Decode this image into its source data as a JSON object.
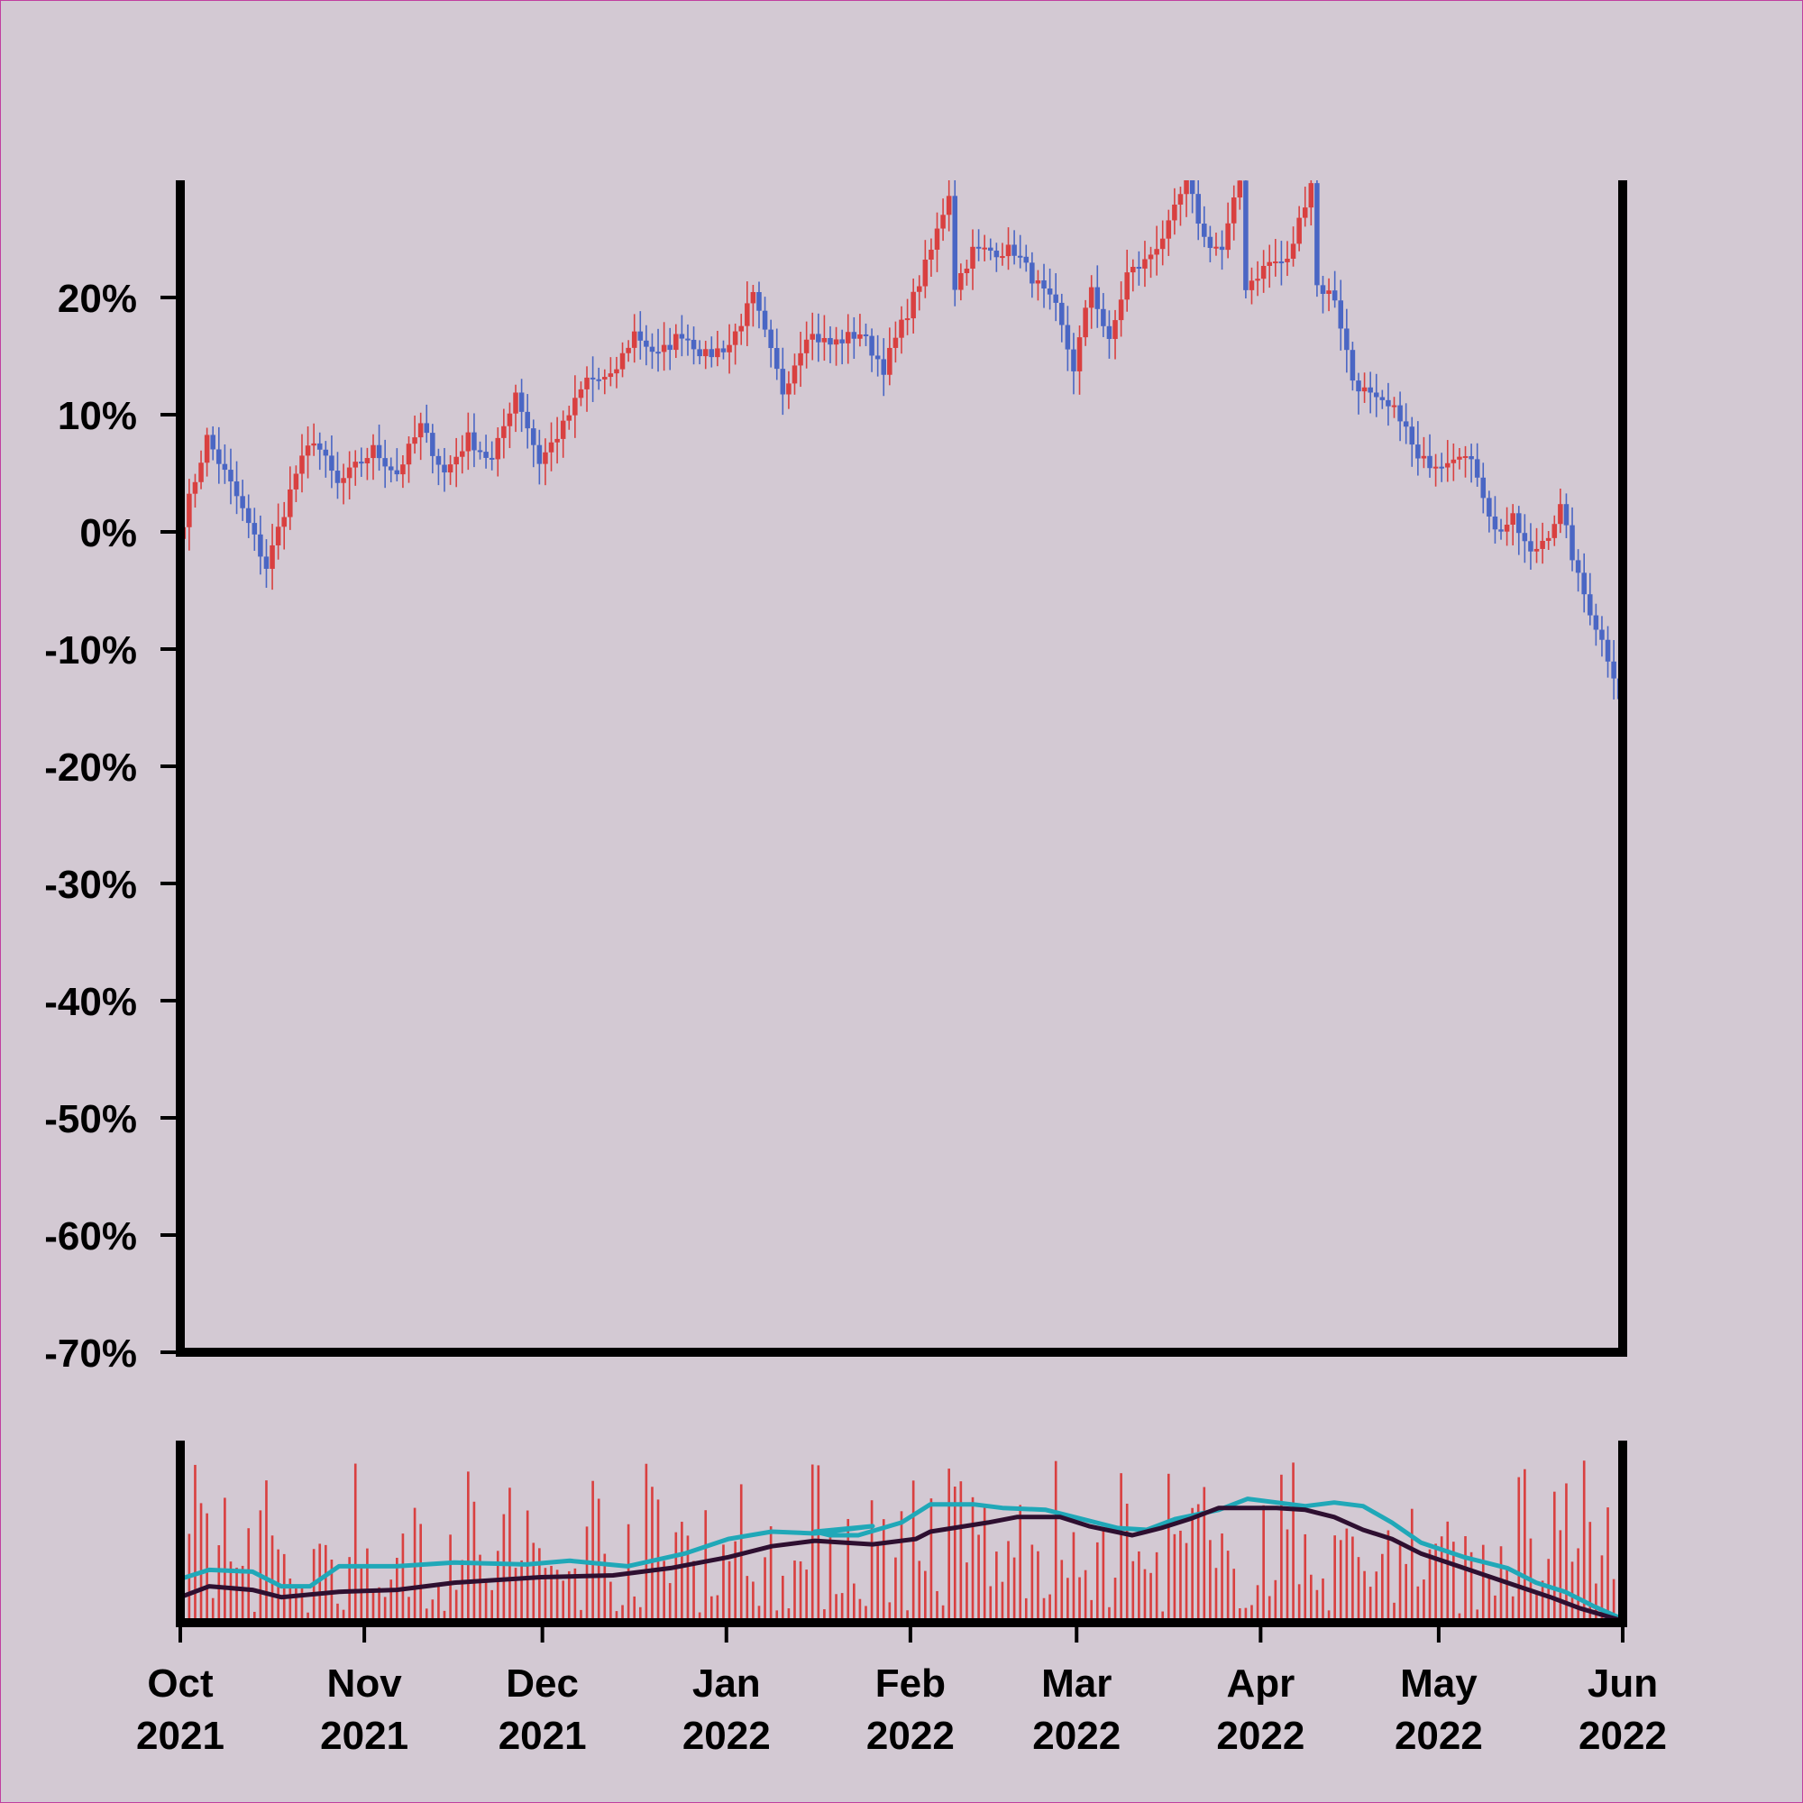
{
  "chart_data": [
    {
      "type": "candlestick",
      "title": "",
      "xlabel": "",
      "ylabel": "",
      "ylim": [
        -70,
        30
      ],
      "y_unit": "%",
      "y_ticks": [
        20,
        10,
        0,
        -10,
        -20,
        -30,
        -40,
        -50,
        -60,
        -70
      ],
      "y_tick_labels": [
        "20%",
        "10%",
        "0%",
        "-10%",
        "-20%",
        "-30%",
        "-40%",
        "-50%",
        "-60%",
        "-70%"
      ],
      "x_range": [
        "2021-10-01",
        "2022-06-01"
      ],
      "x_ticks": [
        "2021-10-01",
        "2021-11-01",
        "2021-12-01",
        "2022-01-01",
        "2022-02-01",
        "2022-03-01",
        "2022-04-01",
        "2022-05-01",
        "2022-06-01"
      ],
      "x_tick_labels": [
        {
          "month": "Oct",
          "year": "2021"
        },
        {
          "month": "Nov",
          "year": "2021"
        },
        {
          "month": "Dec",
          "year": "2021"
        },
        {
          "month": "Jan",
          "year": "2022"
        },
        {
          "month": "Feb",
          "year": "2022"
        },
        {
          "month": "Mar",
          "year": "2022"
        },
        {
          "month": "Apr",
          "year": "2022"
        },
        {
          "month": "May",
          "year": "2022"
        },
        {
          "month": "Jun",
          "year": "2022"
        }
      ],
      "up_color": "#d94040",
      "down_color": "#4a66c4",
      "close_path": [
        [
          "2021-10-01",
          1
        ],
        [
          "2021-10-05",
          8
        ],
        [
          "2021-10-10",
          3
        ],
        [
          "2021-10-15",
          -3
        ],
        [
          "2021-10-20",
          5
        ],
        [
          "2021-10-23",
          8
        ],
        [
          "2021-10-27",
          4
        ],
        [
          "2021-11-02",
          7
        ],
        [
          "2021-11-06",
          5
        ],
        [
          "2021-11-10",
          9
        ],
        [
          "2021-11-14",
          5
        ],
        [
          "2021-11-18",
          8
        ],
        [
          "2021-11-22",
          6
        ],
        [
          "2021-11-26",
          12
        ],
        [
          "2021-11-30",
          6
        ],
        [
          "2021-12-04",
          9
        ],
        [
          "2021-12-08",
          13
        ],
        [
          "2021-12-12",
          13
        ],
        [
          "2021-12-16",
          17
        ],
        [
          "2021-12-20",
          15
        ],
        [
          "2021-12-24",
          17
        ],
        [
          "2021-12-28",
          15
        ],
        [
          "2022-01-01",
          16
        ],
        [
          "2022-01-05",
          20
        ],
        [
          "2022-01-10",
          12
        ],
        [
          "2022-01-14",
          17
        ],
        [
          "2022-01-18",
          16
        ],
        [
          "2022-01-23",
          17
        ],
        [
          "2022-01-27",
          14
        ],
        [
          "2022-02-01",
          20
        ],
        [
          "2022-02-04",
          24
        ],
        [
          "2022-02-07",
          29
        ],
        [
          "2022-02-08",
          21
        ],
        [
          "2022-02-11",
          24
        ],
        [
          "2022-02-15",
          24
        ],
        [
          "2022-02-18",
          24
        ],
        [
          "2022-02-22",
          21
        ],
        [
          "2022-02-25",
          19
        ],
        [
          "2022-02-28",
          14
        ],
        [
          "2022-03-03",
          21
        ],
        [
          "2022-03-06",
          16
        ],
        [
          "2022-03-09",
          22
        ],
        [
          "2022-03-12",
          23
        ],
        [
          "2022-03-16",
          26
        ],
        [
          "2022-03-19",
          30
        ],
        [
          "2022-03-22",
          25
        ],
        [
          "2022-03-25",
          24
        ],
        [
          "2022-03-28",
          30
        ],
        [
          "2022-03-29",
          21
        ],
        [
          "2022-04-02",
          23
        ],
        [
          "2022-04-05",
          23
        ],
        [
          "2022-04-09",
          30
        ],
        [
          "2022-04-10",
          21
        ],
        [
          "2022-04-13",
          20
        ],
        [
          "2022-04-16",
          13
        ],
        [
          "2022-04-20",
          11
        ],
        [
          "2022-04-24",
          10
        ],
        [
          "2022-04-27",
          6
        ],
        [
          "2022-05-01",
          6
        ],
        [
          "2022-05-04",
          7
        ],
        [
          "2022-05-07",
          5
        ],
        [
          "2022-05-10",
          0
        ],
        [
          "2022-05-13",
          1
        ],
        [
          "2022-05-16",
          -2
        ],
        [
          "2022-05-19",
          0
        ],
        [
          "2022-05-21",
          2
        ],
        [
          "2022-05-24",
          -4
        ],
        [
          "2022-05-27",
          -8
        ],
        [
          "2022-05-30",
          -12
        ],
        [
          "2022-05-31",
          -14
        ]
      ]
    },
    {
      "type": "bar+line",
      "title": "",
      "xlabel": "",
      "ylabel": "",
      "bar_color": "#d94040",
      "bar_heights_relative": "0.0–1.0 of panel, final bar at 1.0",
      "series": [
        {
          "color": "#20a8b8",
          "style": "line",
          "values_relative": [
            [
              0,
              0.24
            ],
            [
              0.02,
              0.29
            ],
            [
              0.05,
              0.28
            ],
            [
              0.07,
              0.2
            ],
            [
              0.09,
              0.2
            ],
            [
              0.11,
              0.31
            ],
            [
              0.15,
              0.31
            ],
            [
              0.19,
              0.33
            ],
            [
              0.24,
              0.32
            ],
            [
              0.27,
              0.34
            ],
            [
              0.31,
              0.31
            ],
            [
              0.35,
              0.38
            ],
            [
              0.38,
              0.46
            ],
            [
              0.41,
              0.5
            ],
            [
              0.44,
              0.49
            ],
            [
              0.48,
              0.53
            ],
            [
              0.44,
              0.5
            ],
            [
              0.45,
              0.48
            ],
            [
              0.47,
              0.48
            ],
            [
              0.5,
              0.55
            ],
            [
              0.52,
              0.65
            ],
            [
              0.55,
              0.65
            ],
            [
              0.57,
              0.63
            ],
            [
              0.6,
              0.62
            ],
            [
              0.63,
              0.56
            ],
            [
              0.65,
              0.52
            ],
            [
              0.67,
              0.51
            ],
            [
              0.69,
              0.57
            ],
            [
              0.72,
              0.62
            ],
            [
              0.74,
              0.68
            ],
            [
              0.76,
              0.66
            ],
            [
              0.78,
              0.64
            ],
            [
              0.8,
              0.66
            ],
            [
              0.82,
              0.64
            ],
            [
              0.84,
              0.55
            ],
            [
              0.86,
              0.44
            ],
            [
              0.89,
              0.36
            ],
            [
              0.92,
              0.3
            ],
            [
              0.94,
              0.22
            ],
            [
              0.96,
              0.17
            ],
            [
              0.98,
              0.09
            ],
            [
              1.0,
              0.02
            ]
          ]
        },
        {
          "color": "#2e0f30",
          "style": "line",
          "values_relative": [
            [
              0,
              0.14
            ],
            [
              0.02,
              0.2
            ],
            [
              0.05,
              0.18
            ],
            [
              0.07,
              0.14
            ],
            [
              0.11,
              0.17
            ],
            [
              0.15,
              0.18
            ],
            [
              0.19,
              0.22
            ],
            [
              0.25,
              0.25
            ],
            [
              0.3,
              0.26
            ],
            [
              0.34,
              0.3
            ],
            [
              0.38,
              0.36
            ],
            [
              0.41,
              0.42
            ],
            [
              0.44,
              0.45
            ],
            [
              0.48,
              0.43
            ],
            [
              0.51,
              0.46
            ],
            [
              0.52,
              0.5
            ],
            [
              0.56,
              0.55
            ],
            [
              0.58,
              0.58
            ],
            [
              0.61,
              0.58
            ],
            [
              0.63,
              0.53
            ],
            [
              0.66,
              0.48
            ],
            [
              0.68,
              0.52
            ],
            [
              0.7,
              0.57
            ],
            [
              0.72,
              0.63
            ],
            [
              0.76,
              0.63
            ],
            [
              0.78,
              0.62
            ],
            [
              0.8,
              0.58
            ],
            [
              0.82,
              0.51
            ],
            [
              0.84,
              0.46
            ],
            [
              0.86,
              0.38
            ],
            [
              0.89,
              0.3
            ],
            [
              0.92,
              0.22
            ],
            [
              0.95,
              0.14
            ],
            [
              0.97,
              0.08
            ],
            [
              1.0,
              0.01
            ]
          ]
        }
      ]
    }
  ]
}
